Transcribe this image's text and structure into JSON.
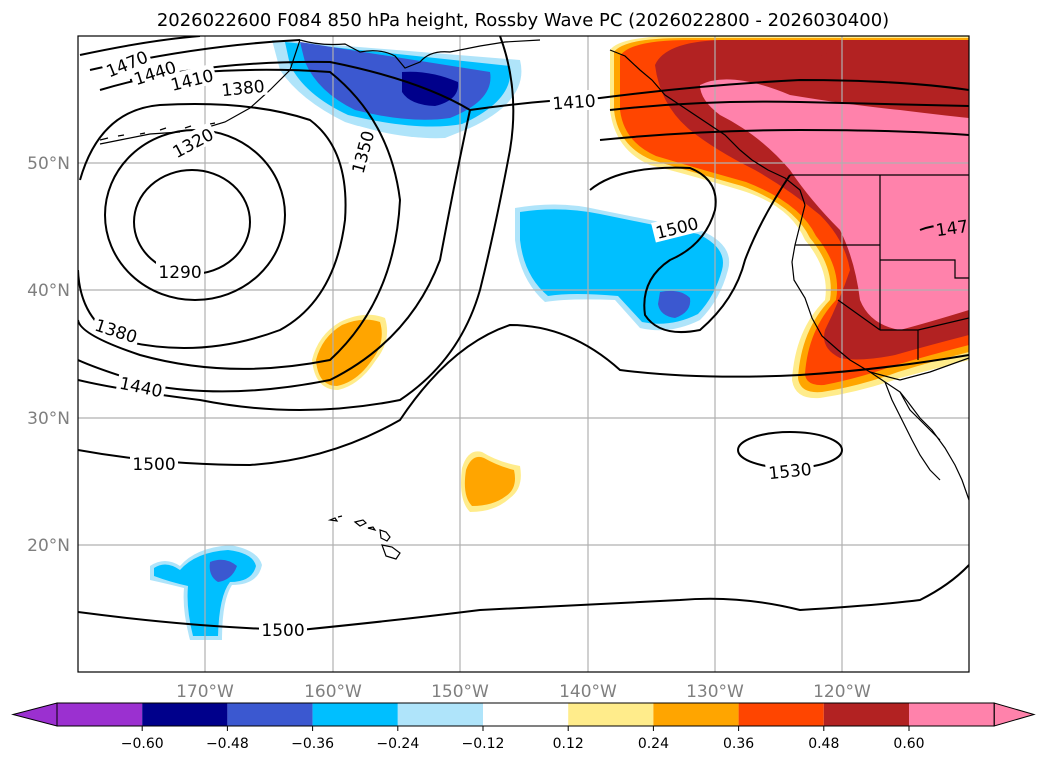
{
  "title": "2026022600 F084 850 hPa height, Rossby Wave PC (2026022800 - 2026030400)",
  "lat_labels": [
    "50°N",
    "40°N",
    "30°N",
    "20°N"
  ],
  "lon_labels": [
    "170°W",
    "160°W",
    "150°W",
    "140°W",
    "130°W",
    "120°W"
  ],
  "contour_labels": {
    "c1470": "1470",
    "c1440a": "1440",
    "c1410a": "1410",
    "c1380a": "1380",
    "c1320": "1320",
    "c1350": "1350",
    "c1290": "1290",
    "c1380b": "1380",
    "c1440b": "1440",
    "c1500a": "1500",
    "c1500b": "1500",
    "c1410b": "1410",
    "c1530": "1530",
    "c1500c": "1500",
    "c147": "147"
  },
  "colorbar": {
    "tick_labels": [
      "−0.60",
      "−0.48",
      "−0.36",
      "−0.24",
      "−0.12",
      "0.12",
      "0.24",
      "0.36",
      "0.48",
      "0.60"
    ],
    "colors": [
      "#9b30d0",
      "#00008b",
      "#3b58d0",
      "#00bfff",
      "#afe4fa",
      "#ffffff",
      "#ffec8b",
      "#ffa500",
      "#ff4500",
      "#b22222",
      "#ff82ab"
    ]
  }
}
